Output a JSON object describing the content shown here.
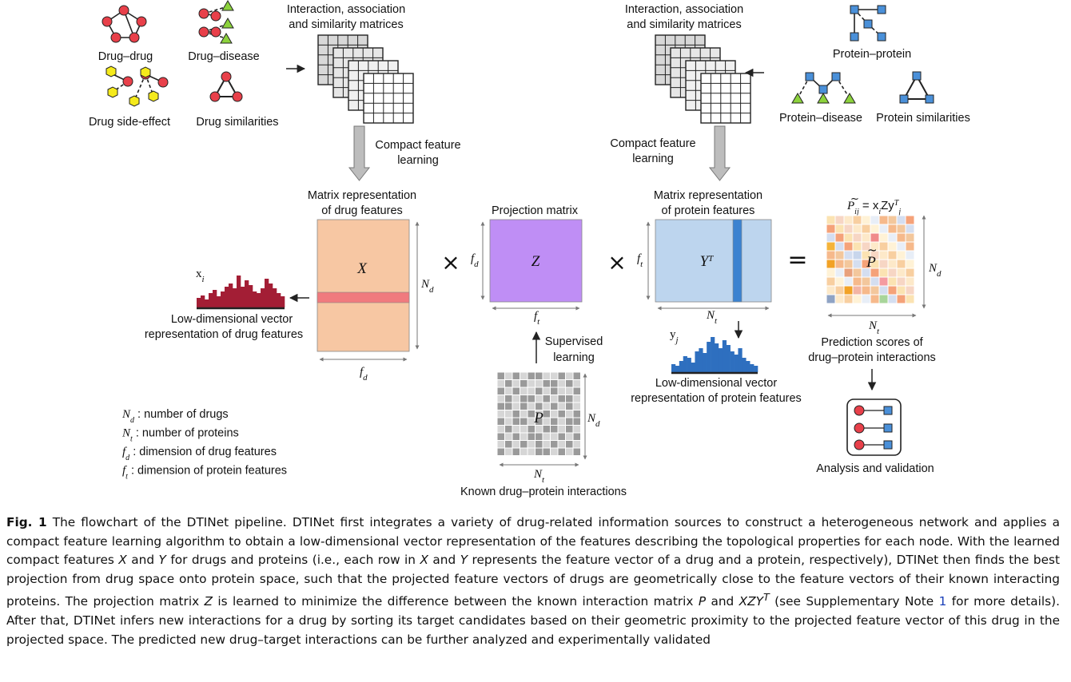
{
  "left_sources": {
    "drug_drug": "Drug–drug",
    "drug_disease": "Drug–disease",
    "drug_side_effect": "Drug side-effect",
    "drug_similarities": "Drug similarities"
  },
  "right_sources": {
    "protein_protein": "Protein–protein",
    "protein_disease": "Protein–disease",
    "protein_similarities": "Protein similarities"
  },
  "matrices_label_line1": "Interaction, association",
  "matrices_label_line2": "and similarity matrices",
  "compact_line1": "Compact feature",
  "compact_line2": "learning",
  "drug_matrix": {
    "title1": "Matrix representation",
    "title2": "of drug features",
    "symbol": "X",
    "rows": "N",
    "rows_sub": "d",
    "cols": "f",
    "cols_sub": "d"
  },
  "projection": {
    "title": "Projection matrix",
    "symbol": "Z",
    "rows": "f",
    "rows_sub": "d",
    "cols": "f",
    "cols_sub": "t"
  },
  "protein_matrix": {
    "title1": "Matrix representation",
    "title2": "of protein features",
    "symbol": "Y",
    "sup": "T",
    "rows": "f",
    "rows_sub": "t",
    "cols": "N",
    "cols_sub": "t"
  },
  "ops": {
    "times": "×",
    "equals": "="
  },
  "prediction": {
    "formula_p": "P",
    "formula_sub": "ij",
    "formula_rest": " = x",
    "formula_i": "i",
    "formula_zy": "Zy",
    "formula_T": "T",
    "formula_j": "j",
    "symbol": "P",
    "rows": "N",
    "rows_sub": "d",
    "cols": "N",
    "cols_sub": "t",
    "caption1": "Prediction scores of",
    "caption2": "drug–protein interactions"
  },
  "drug_vector": {
    "label": "x",
    "label_sub": "i",
    "caption1": "Low-dimensional vector",
    "caption2": "representation of drug features"
  },
  "protein_vector": {
    "label": "y",
    "label_sub": "j",
    "caption1": "Low-dimensional vector",
    "caption2": "representation of protein features"
  },
  "supervised": {
    "line1": "Supervised",
    "line2": "learning"
  },
  "known": {
    "symbol": "P",
    "rows": "N",
    "rows_sub": "d",
    "cols": "N",
    "cols_sub": "t",
    "caption": "Known drug–protein interactions"
  },
  "analysis": "Analysis and validation",
  "legend": [
    {
      "sym": "N",
      "sub": "d",
      "text": ": number of drugs"
    },
    {
      "sym": "N",
      "sub": "t",
      "text": ": number of proteins"
    },
    {
      "sym": "f",
      "sub": "d",
      "text": ": dimension of drug features"
    },
    {
      "sym": "f",
      "sub": "t",
      "text": ": dimension of protein features"
    }
  ],
  "caption": {
    "label": "Fig. 1",
    "p1": " The flowchart of the DTINet pipeline. DTINet first integrates a variety of drug-related information sources to construct a heterogeneous network and applies a compact feature learning algorithm to obtain a low-dimensional vector representation of the features describing the topological properties for each node. With the learned compact features ",
    "x1": "X",
    "p2": " and ",
    "y1": "Y",
    "p3": " for drugs and proteins (i.e., each row in ",
    "x2": "X",
    "p4": " and ",
    "y2": "Y",
    "p5": " represents the feature vector of a drug and a protein, respectively), DTINet then finds the best projection from drug space onto protein space, such that the projected feature vectors of drugs are geometrically close to the feature vectors of their known interacting proteins. The projection matrix ",
    "z": "Z",
    "p6": " is learned to minimize the difference between the known interaction matrix ",
    "p": "P",
    "p7": " and ",
    "xzy": "XZY",
    "sup": "T",
    "p8": " (see Supplementary Note ",
    "note": "1",
    "p9": " for more details). After that, DTINet infers new interactions for a drug by sorting its target candidates based on their geometric proximity to the projected feature vector of this drug in the projected space. The predicted new drug–target interactions can be further analyzed and experimentally validated"
  },
  "colors": {
    "drug_node": "#e8404a",
    "side_effect": "#f5ea1c",
    "disease": "#8cd23c",
    "protein": "#4a90d9",
    "x_fill": "#f7c7a3",
    "x_band": "#f07a7e",
    "z_fill": "#bf8ef5",
    "y_fill": "#bdd5ee",
    "y_band": "#3b82d0",
    "drug_bars": "#a31e35",
    "protein_bars": "#2e6fbf"
  }
}
